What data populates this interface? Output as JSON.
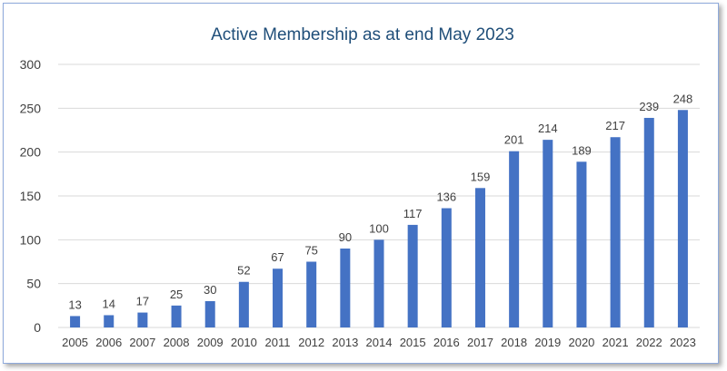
{
  "chart_data": {
    "type": "bar",
    "title": "Active Membership as at end May 2023",
    "xlabel": "",
    "ylabel": "",
    "categories": [
      "2005",
      "2006",
      "2007",
      "2008",
      "2009",
      "2010",
      "2011",
      "2012",
      "2013",
      "2014",
      "2015",
      "2016",
      "2017",
      "2018",
      "2019",
      "2020",
      "2021",
      "2022",
      "2023"
    ],
    "values": [
      13,
      14,
      17,
      25,
      30,
      52,
      67,
      75,
      90,
      100,
      117,
      136,
      159,
      201,
      214,
      189,
      217,
      239,
      248
    ],
    "ylim": [
      0,
      300
    ],
    "yticks": [
      0,
      50,
      100,
      150,
      200,
      250,
      300
    ],
    "grid": true,
    "bar_color": "#4472c4",
    "grid_color": "#d9d9d9",
    "legend": "none"
  }
}
